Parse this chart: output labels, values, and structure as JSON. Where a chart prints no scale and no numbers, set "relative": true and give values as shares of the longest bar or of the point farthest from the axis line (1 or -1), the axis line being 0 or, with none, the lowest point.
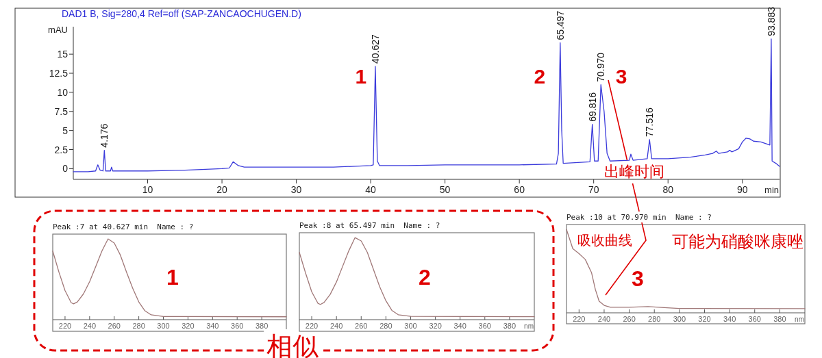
{
  "chart_data": [
    {
      "type": "line",
      "title": "DAD1 B, Sig=280,4 Ref=off (SAP-ZANCAOCHUGEN.D)",
      "xlabel": "min",
      "ylabel": "mAU",
      "xlim": [
        0,
        95
      ],
      "ylim": [
        -1.4,
        18.6
      ],
      "xticks": [
        10,
        20,
        30,
        40,
        50,
        60,
        70,
        80,
        90
      ],
      "yticks": [
        0,
        2.5,
        5,
        7.5,
        10,
        12.5,
        15
      ],
      "color": "#3b3bdb",
      "x": [
        0,
        2,
        3.0,
        3.3,
        3.6,
        4.0,
        4.176,
        4.35,
        5.0,
        5.15,
        5.3,
        10,
        15,
        20,
        21.0,
        21.5,
        22.2,
        23,
        30,
        35,
        40,
        40.35,
        40.627,
        40.9,
        41.2,
        45,
        50,
        55,
        60,
        65,
        65.25,
        65.497,
        65.7,
        65.9,
        69.5,
        69.816,
        70.1,
        70.6,
        70.97,
        71.4,
        71.8,
        72.2,
        74.8,
        75.0,
        75.3,
        77.2,
        77.516,
        77.8,
        80,
        83,
        85,
        86.0,
        86.5,
        86.8,
        88.0,
        88.3,
        88.6,
        89.5,
        90,
        90.5,
        91,
        91.5,
        92.5,
        93.7,
        93.883,
        94.0,
        94.5,
        95
      ],
      "values": [
        -0.4,
        -0.4,
        -0.3,
        0.5,
        -0.2,
        -0.3,
        2.4,
        -0.3,
        -0.3,
        0.2,
        -0.3,
        -0.3,
        -0.2,
        0.0,
        0.1,
        0.9,
        0.4,
        0.2,
        0.2,
        0.2,
        0.4,
        0.5,
        13.4,
        1.0,
        0.4,
        0.4,
        0.5,
        0.5,
        0.5,
        0.6,
        2.0,
        16.5,
        5.0,
        0.7,
        0.9,
        5.8,
        1.0,
        1.0,
        11.0,
        7.5,
        2.0,
        1.0,
        1.1,
        1.9,
        1.1,
        1.3,
        3.8,
        1.3,
        1.3,
        1.5,
        1.8,
        2.0,
        2.3,
        2.0,
        2.2,
        2.4,
        2.2,
        2.6,
        3.5,
        4.0,
        3.9,
        3.6,
        3.5,
        3.1,
        17.0,
        1.0,
        0.7,
        0.3
      ],
      "annotations": [
        {
          "text": "4.176",
          "x": 4.176,
          "y": 2.4
        },
        {
          "text": "40.627",
          "x": 40.627,
          "y": 13.4
        },
        {
          "text": "65.497",
          "x": 65.497,
          "y": 16.5
        },
        {
          "text": "69.816",
          "x": 69.816,
          "y": 5.8
        },
        {
          "text": "70.970",
          "x": 70.97,
          "y": 11.0
        },
        {
          "text": "77.516",
          "x": 77.516,
          "y": 3.8
        },
        {
          "text": "93.883",
          "x": 93.883,
          "y": 17.0
        },
        {
          "text": "1",
          "x": 40.627,
          "y": 13.4
        },
        {
          "text": "2",
          "x": 65.497,
          "y": 16.5
        },
        {
          "text": "3",
          "x": 70.97,
          "y": 11.0
        },
        "出峰时间"
      ]
    },
    {
      "type": "line",
      "relative": true,
      "title": "Peak :7 at 40.627 min  Name : ?",
      "xlim": [
        210,
        400
      ],
      "xticks": [
        220,
        240,
        260,
        280,
        300,
        320,
        340,
        360,
        380
      ],
      "color": "#a07878",
      "x": [
        210,
        215,
        220,
        225,
        227,
        230,
        235,
        240,
        245,
        250,
        255,
        260,
        265,
        270,
        275,
        280,
        285,
        290,
        300,
        400
      ],
      "values": [
        0.85,
        0.59,
        0.36,
        0.21,
        0.196,
        0.22,
        0.32,
        0.47,
        0.66,
        0.85,
        1.0,
        0.95,
        0.8,
        0.59,
        0.39,
        0.22,
        0.11,
        0.06,
        0.04,
        0.036
      ],
      "annotations": [
        "1",
        "相似"
      ]
    },
    {
      "type": "line",
      "relative": true,
      "title": "Peak :8 at 65.497 min  Name : ?",
      "xlabel": "nm",
      "xlim": [
        210,
        400
      ],
      "xticks": [
        220,
        240,
        260,
        280,
        300,
        320,
        340,
        360,
        380
      ],
      "color": "#a07878",
      "x": [
        210,
        215,
        220,
        225,
        227,
        230,
        235,
        240,
        245,
        250,
        255,
        260,
        265,
        270,
        275,
        280,
        285,
        290,
        300,
        400
      ],
      "values": [
        0.82,
        0.57,
        0.34,
        0.2,
        0.186,
        0.21,
        0.31,
        0.46,
        0.65,
        0.84,
        1.0,
        0.96,
        0.82,
        0.61,
        0.4,
        0.23,
        0.11,
        0.06,
        0.04,
        0.036
      ],
      "annotations": [
        "2"
      ]
    },
    {
      "type": "line",
      "relative": true,
      "title": "Peak :10 at 70.970 min  Name : ?",
      "xlabel": "nm",
      "xlim": [
        210,
        400
      ],
      "xticks": [
        220,
        240,
        260,
        280,
        300,
        320,
        340,
        360,
        380
      ],
      "color": "#a07878",
      "x": [
        210,
        215,
        220,
        225,
        230,
        233,
        236,
        240,
        245,
        260,
        275,
        290,
        300,
        400
      ],
      "values": [
        1.0,
        0.77,
        0.71,
        0.64,
        0.48,
        0.28,
        0.14,
        0.09,
        0.066,
        0.066,
        0.075,
        0.06,
        0.052,
        0.05
      ],
      "annotations": [
        "3",
        "吸收曲线",
        "可能为硝酸咪康唑"
      ]
    }
  ]
}
